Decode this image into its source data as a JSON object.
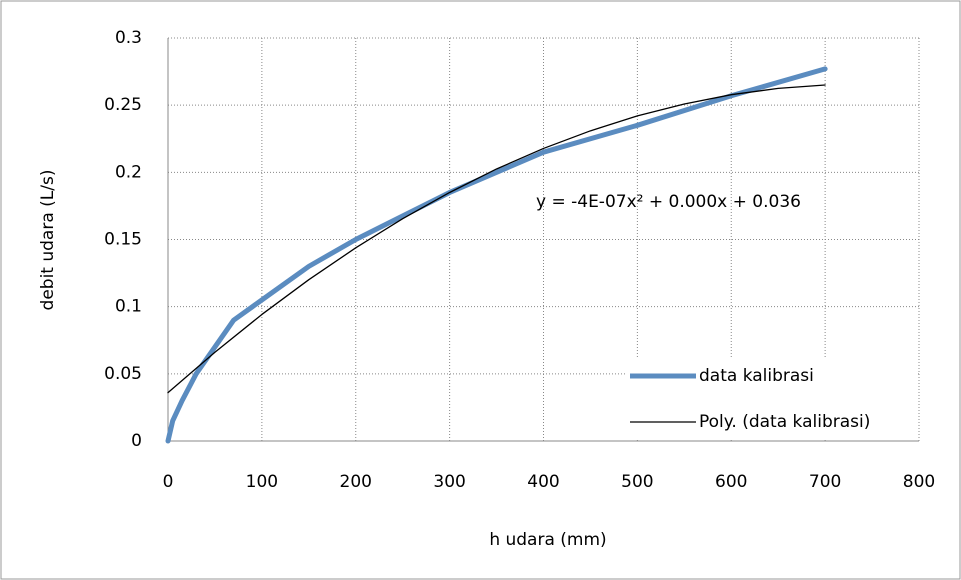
{
  "chart_data": {
    "type": "line",
    "x_label": "h udara (mm)",
    "y_label": "debit udara (L/s)",
    "annotation": "y = -4E-07x² + 0.000x + 0.036",
    "xlim": [
      0,
      800
    ],
    "xticks": [
      0,
      100,
      200,
      300,
      400,
      500,
      600,
      700,
      800
    ],
    "ylim": [
      0,
      0.3
    ],
    "yticks": [
      0,
      0.05,
      0.1,
      0.15,
      0.2,
      0.25,
      0.3
    ],
    "grid": true,
    "legend": "lower right",
    "series": [
      {
        "name": "data kalibrasi",
        "color": "#5b8cc0",
        "width": 5,
        "x": [
          0,
          5,
          15,
          30,
          50,
          70,
          100,
          150,
          200,
          300,
          400,
          500,
          600,
          700
        ],
        "values": [
          0,
          0.015,
          0.03,
          0.05,
          0.07,
          0.09,
          0.105,
          0.13,
          0.15,
          0.185,
          0.215,
          0.235,
          0.257,
          0.277
        ]
      },
      {
        "name": "Poly. (data kalibrasi)",
        "color": "#000000",
        "width": 1.3,
        "x": [
          0,
          50,
          100,
          150,
          200,
          250,
          300,
          350,
          400,
          450,
          500,
          550,
          600,
          650,
          700
        ],
        "values": [
          0.036,
          0.0661,
          0.0942,
          0.1201,
          0.1438,
          0.1655,
          0.185,
          0.2025,
          0.2178,
          0.2309,
          0.242,
          0.2509,
          0.2578,
          0.2625,
          0.265
        ]
      }
    ]
  }
}
